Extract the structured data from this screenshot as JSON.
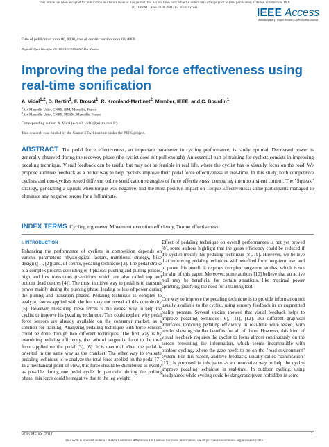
{
  "header": {
    "note": "This article has been accepted for publication in a future issue of this journal, but has not been fully edited. Content may change prior to final publication. Citation information: DOI 10.1109/ACCESS.2020.2984215, IEEE Access",
    "logo_ieee": "IEEE",
    "logo_access": "Access",
    "logo_tagline": "Multidisciplinary | Rapid Review | Open Access Journal",
    "logo_color": "#00629b"
  },
  "meta": {
    "dates": "Date of publication xxxx 00, 0000, date of current version xxxx 00, 0000.",
    "doi": "Digital Object Identifier 10.1109/ACCESS.2017.Doi Number"
  },
  "title": "Improving the pedal force effectiveness using real-time sonification",
  "title_color": "#1a6fb5",
  "authors": {
    "a1": "A. Vidal",
    "a1_sup": "1,2",
    "a2": ", D. Bertin",
    "a2_sup": "1",
    "a3": ", F. Drouot",
    "a3_sup": "1",
    "a4": ", R. Kronland-Martinet",
    "a4_sup": "2",
    "a5": ", Member, IEEE, and C. Bourdin",
    "a5_sup": "1"
  },
  "affiliations": {
    "aff1_sup": "1",
    "aff1": "Aix Marseille Univ., CNRS, ISM, Marseille, France",
    "aff2_sup": "2",
    "aff2": "Aix Marseille Univ., CNRS, PRISM, Marseille, France"
  },
  "corresponding": "Corresponding author: A. Vidal (e-mail: vidal@prism.cnrs.fr).",
  "funding": "This research was funded by the Carnot STAR institute under the PEPS project.",
  "abstract": {
    "label": "ABSTRACT",
    "text": "The pedal force effectiveness, an important parameter in cycling performance, is rarely optimal. Decreased power is generally observed during the recovery phase (the cyclist does not pull enough). An essential part of training for cyclists consists in improving pedaling technique. Visual feedback can be useful but may not be feasible in real life, where the cyclist has to visually focus on the road. We propose auditive feedback as a better way to help cyclists improve their pedal force effectiveness in real-time. In this study, both competitive cyclists and non-cyclists tested different online sonification strategies of force effectiveness, comparing them to a silent control. The \"Squeak\" strategy, generating a squeak when torque was negative, had the most positive impact on Torque Effectiveness: some participants managed to eliminate any negative torque for a full minute."
  },
  "index_terms": {
    "label": "INDEX TERMS",
    "text": "Cycling ergometer, Movement execution efficiency, Torque effectiveness"
  },
  "section1": {
    "heading": "I. INTRODUCTION",
    "p1": "Enhancing the performance of cyclists in competition depends on various parameters: physiological factors, nutritional strategy, bike design ([1], [2]) and, of course, pedaling technique [3]. The pedal stroke is a complex process consisting of 4 phases: pushing and pulling phases, high and low transitions (transitions which are also called top and bottom dead centres [4]). The most intuitive way to pedal is to transmit power mainly during the pushing phase, leading to less of power during the pulling and transition phases. Pedaling technique is complex to analyze, forces applied with the feet may not reveal all this complexity [5]. However, measuring these forces is the easiest way to help the cyclist to improve his pedaling technique. This could explain why pedal force sensors are already available on the consumer market, as a solution for training. Analyzing pedaling technique with force sensors could be done through two different techniques. The first way is by examining pedaling efficiency, the ratio of tangential force to the total force applied on the pedal [3], [6]. It is maximal when the pedal is oriented in the same way as the crankset. The other way to evaluate pedaling technique is to analyze the total force applied on the pedal [7]. In a mechanical point of view, this force should be distributed as evenly as possible during one pedal cycle. In particular during the pulling phase, this force could be negative due to the leg weight.",
    "p2": "Effect of pedaling technique on overall performances is not yet proved [8], some authors highlight that the gross efficiency could be reduced if the cyclist modify his pedaling technique [8], [9]. However, we believe that improving pedaling technique will benefited from long-term use, and to prove this benefit it requires complex long-term studies, which is not the aim of this paper. Moreover, some authors [10] believe that an active pull may be beneficial for certain situations, like maximal power sprinting, justifying the need for a training tool.",
    "p3": "One way to improve the pedaling technique is to provide information not usually available to the cyclist, using sensory feedback in an augmented reality process. Several studies showed that visual feedback helps to improve pedaling technique [6], [11], [12]. But different graphical interfaces reporting pedaling efficiency in real-time were tested, with results showing similar benefits for all of them. However, this kind of visual feedback requires the cyclist to focus almost continuously on the screen presenting the information, which seems incompatible with outdoor cycling, where the gaze needs to be on the \"road-environment\" system. For this reason, auditive feedback, usually called \"sonification\" [13], is proposed in this paper as an innovative way to help the cyclist improve pedaling technique in real-time. In outdoor cycling, using headphones while cycling could be dangerous (even forbidden in some"
  },
  "footer": {
    "volume": "VOLUME XX, 2017",
    "page": "1",
    "license": "This work is licensed under a Creative Commons Attribution 4.0 License. For more information, see https://creativecommons.org/licenses/by/4.0/."
  }
}
